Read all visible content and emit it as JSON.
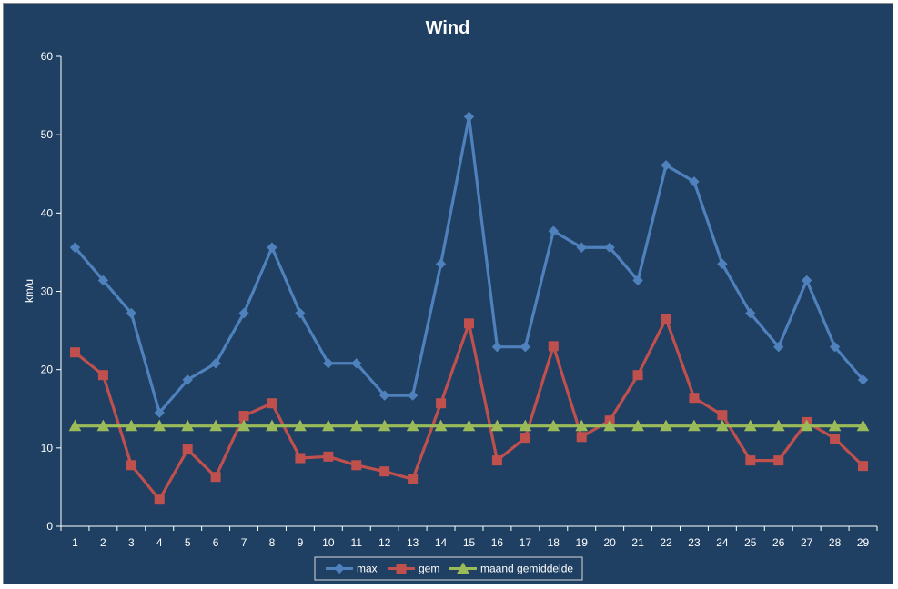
{
  "chart_data": {
    "type": "line",
    "title": "Wind",
    "xlabel": "",
    "ylabel": "km/u",
    "ylim": [
      0,
      60
    ],
    "yticks": [
      0,
      10,
      20,
      30,
      40,
      50,
      60
    ],
    "x": [
      1,
      2,
      3,
      4,
      5,
      6,
      7,
      8,
      9,
      10,
      11,
      12,
      13,
      14,
      15,
      16,
      17,
      18,
      19,
      20,
      21,
      22,
      23,
      24,
      25,
      26,
      27,
      28,
      29
    ],
    "grid": false,
    "legend_position": "bottom",
    "series": [
      {
        "name": "max",
        "color": "#4f81bd",
        "marker": "diamond",
        "values": [
          35.6,
          31.4,
          27.2,
          14.5,
          18.7,
          20.8,
          27.2,
          35.6,
          27.2,
          20.8,
          20.8,
          16.7,
          16.7,
          33.5,
          52.3,
          22.9,
          22.9,
          37.7,
          35.6,
          35.6,
          31.4,
          46.1,
          44.0,
          33.5,
          27.2,
          22.9,
          31.4,
          22.9,
          18.7
        ]
      },
      {
        "name": "gem",
        "color": "#c0504d",
        "marker": "square",
        "values": [
          22.2,
          19.3,
          7.8,
          3.4,
          9.8,
          6.3,
          14.1,
          15.7,
          8.7,
          8.9,
          7.8,
          7.0,
          6.0,
          15.7,
          25.9,
          8.4,
          11.3,
          23.0,
          11.4,
          13.5,
          19.3,
          26.5,
          16.4,
          14.2,
          8.4,
          8.4,
          13.3,
          11.2,
          7.7
        ]
      },
      {
        "name": "maand gemiddelde",
        "color": "#9bbb59",
        "marker": "triangle",
        "values": [
          12.8,
          12.8,
          12.8,
          12.8,
          12.8,
          12.8,
          12.8,
          12.8,
          12.8,
          12.8,
          12.8,
          12.8,
          12.8,
          12.8,
          12.8,
          12.8,
          12.8,
          12.8,
          12.8,
          12.8,
          12.8,
          12.8,
          12.8,
          12.8,
          12.8,
          12.8,
          12.8,
          12.8,
          12.8
        ]
      }
    ]
  }
}
